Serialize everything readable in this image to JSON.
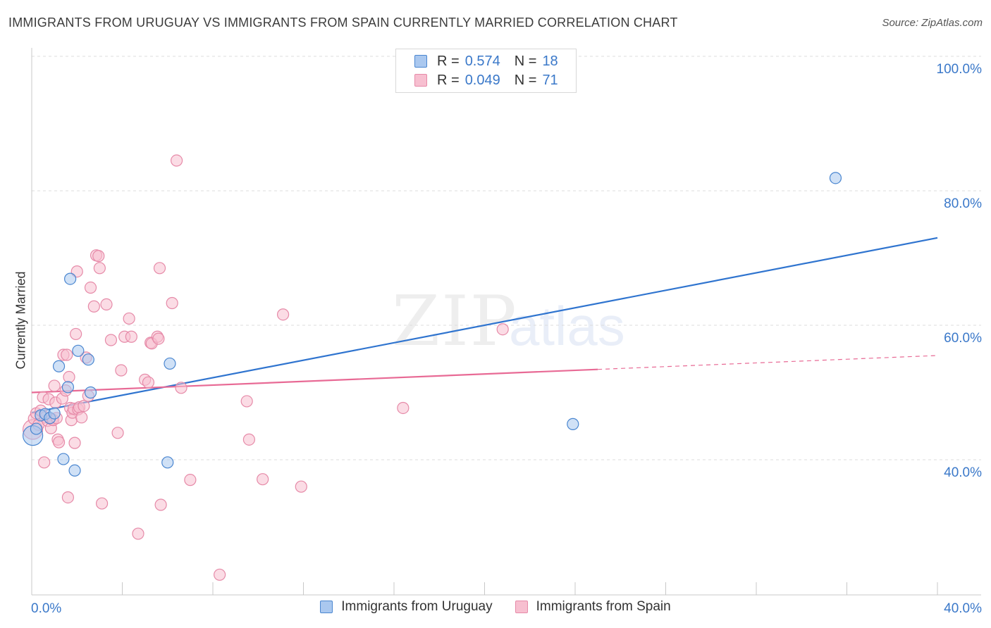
{
  "title": "IMMIGRANTS FROM URUGUAY VS IMMIGRANTS FROM SPAIN CURRENTLY MARRIED CORRELATION CHART",
  "source": "Source: ZipAtlas.com",
  "watermark": {
    "zip": "ZIP",
    "atlas": "atlas"
  },
  "legend": {
    "uruguay": {
      "r_label": "R =",
      "r_value": "0.574",
      "n_label": "N =",
      "n_value": "18"
    },
    "spain": {
      "r_label": "R =",
      "r_value": "0.049",
      "n_label": "N =",
      "n_value": "71"
    }
  },
  "colors": {
    "uruguay_fill": "#aac8ef",
    "uruguay_stroke": "#4a86d0",
    "uruguay_line": "#2f74cf",
    "spain_fill": "#f7bfd0",
    "spain_stroke": "#e68aa8",
    "spain_line": "#e86a95"
  },
  "chart_data": {
    "type": "scatter",
    "title": "IMMIGRANTS FROM URUGUAY VS IMMIGRANTS FROM SPAIN CURRENTLY MARRIED CORRELATION CHART",
    "xlabel": "",
    "ylabel": "Currently Married",
    "xlim": [
      0,
      40
    ],
    "ylim": [
      22,
      102
    ],
    "x_tick_labels": [
      "0.0%",
      "40.0%"
    ],
    "y_ticks": [
      40,
      60,
      80,
      100
    ],
    "y_tick_labels": [
      "40.0%",
      "60.0%",
      "80.0%",
      "100.0%"
    ],
    "grid": true,
    "series": [
      {
        "name": "Immigrants from Uruguay",
        "r": 0.574,
        "n": 18,
        "trend": {
          "x": [
            0,
            40
          ],
          "y": [
            47.0,
            73.0
          ]
        },
        "points": [
          {
            "x": 0.05,
            "y": 43.6,
            "big": true
          },
          {
            "x": 0.2,
            "y": 44.6
          },
          {
            "x": 0.4,
            "y": 46.6
          },
          {
            "x": 0.6,
            "y": 46.8
          },
          {
            "x": 0.8,
            "y": 46.2
          },
          {
            "x": 1.0,
            "y": 46.9
          },
          {
            "x": 1.2,
            "y": 53.9
          },
          {
            "x": 1.4,
            "y": 40.1
          },
          {
            "x": 1.6,
            "y": 50.8
          },
          {
            "x": 1.7,
            "y": 66.9
          },
          {
            "x": 1.9,
            "y": 38.4
          },
          {
            "x": 2.05,
            "y": 56.2
          },
          {
            "x": 2.5,
            "y": 54.9
          },
          {
            "x": 2.6,
            "y": 50.0
          },
          {
            "x": 6.0,
            "y": 39.6
          },
          {
            "x": 6.1,
            "y": 54.3
          },
          {
            "x": 23.9,
            "y": 45.3
          },
          {
            "x": 35.5,
            "y": 81.9
          }
        ]
      },
      {
        "name": "Immigrants from Spain",
        "r": 0.049,
        "n": 71,
        "trend": {
          "x": [
            0,
            40
          ],
          "y": [
            50.0,
            55.5
          ],
          "solid_until_x": 25.0
        },
        "points": [
          {
            "x": 0.05,
            "y": 44.5,
            "big": true
          },
          {
            "x": 0.1,
            "y": 46.1
          },
          {
            "x": 0.2,
            "y": 46.9
          },
          {
            "x": 0.3,
            "y": 45.2
          },
          {
            "x": 0.4,
            "y": 47.3
          },
          {
            "x": 0.5,
            "y": 49.3
          },
          {
            "x": 0.55,
            "y": 39.6
          },
          {
            "x": 0.6,
            "y": 46.3
          },
          {
            "x": 0.7,
            "y": 45.8
          },
          {
            "x": 0.75,
            "y": 49.0
          },
          {
            "x": 0.8,
            "y": 46.2
          },
          {
            "x": 0.85,
            "y": 44.7
          },
          {
            "x": 0.9,
            "y": 46.0
          },
          {
            "x": 0.95,
            "y": 45.9
          },
          {
            "x": 1.0,
            "y": 51.0
          },
          {
            "x": 1.05,
            "y": 48.5
          },
          {
            "x": 1.1,
            "y": 46.2
          },
          {
            "x": 1.15,
            "y": 43.0
          },
          {
            "x": 1.2,
            "y": 42.6
          },
          {
            "x": 1.35,
            "y": 49.1
          },
          {
            "x": 1.4,
            "y": 55.6
          },
          {
            "x": 1.5,
            "y": 50.3
          },
          {
            "x": 1.55,
            "y": 55.6
          },
          {
            "x": 1.6,
            "y": 34.4
          },
          {
            "x": 1.65,
            "y": 52.3
          },
          {
            "x": 1.7,
            "y": 47.7
          },
          {
            "x": 1.75,
            "y": 45.9
          },
          {
            "x": 1.8,
            "y": 47.0
          },
          {
            "x": 1.85,
            "y": 47.6
          },
          {
            "x": 1.9,
            "y": 42.5
          },
          {
            "x": 1.95,
            "y": 58.7
          },
          {
            "x": 2.0,
            "y": 68.0
          },
          {
            "x": 2.05,
            "y": 47.5
          },
          {
            "x": 2.1,
            "y": 47.8
          },
          {
            "x": 2.2,
            "y": 46.3
          },
          {
            "x": 2.3,
            "y": 48.0
          },
          {
            "x": 2.4,
            "y": 55.2
          },
          {
            "x": 2.5,
            "y": 49.5
          },
          {
            "x": 2.6,
            "y": 65.6
          },
          {
            "x": 2.75,
            "y": 62.8
          },
          {
            "x": 2.85,
            "y": 70.4
          },
          {
            "x": 2.95,
            "y": 70.3
          },
          {
            "x": 3.0,
            "y": 68.5
          },
          {
            "x": 3.1,
            "y": 33.5
          },
          {
            "x": 3.3,
            "y": 63.1
          },
          {
            "x": 3.5,
            "y": 57.8
          },
          {
            "x": 3.8,
            "y": 44.0
          },
          {
            "x": 3.95,
            "y": 53.3
          },
          {
            "x": 4.1,
            "y": 58.3
          },
          {
            "x": 4.3,
            "y": 61.0
          },
          {
            "x": 4.4,
            "y": 58.3
          },
          {
            "x": 4.7,
            "y": 29.0
          },
          {
            "x": 5.0,
            "y": 51.9
          },
          {
            "x": 5.15,
            "y": 51.5
          },
          {
            "x": 5.25,
            "y": 57.4
          },
          {
            "x": 5.3,
            "y": 57.3
          },
          {
            "x": 5.55,
            "y": 58.3
          },
          {
            "x": 5.6,
            "y": 58.0
          },
          {
            "x": 5.65,
            "y": 68.5
          },
          {
            "x": 5.7,
            "y": 33.3
          },
          {
            "x": 6.2,
            "y": 63.3
          },
          {
            "x": 6.4,
            "y": 84.5
          },
          {
            "x": 6.6,
            "y": 50.7
          },
          {
            "x": 7.0,
            "y": 37.0
          },
          {
            "x": 8.3,
            "y": 22.9
          },
          {
            "x": 9.5,
            "y": 48.7
          },
          {
            "x": 9.6,
            "y": 43.0
          },
          {
            "x": 10.2,
            "y": 37.1
          },
          {
            "x": 11.1,
            "y": 61.6
          },
          {
            "x": 11.9,
            "y": 36.0
          },
          {
            "x": 16.4,
            "y": 47.7
          },
          {
            "x": 20.8,
            "y": 59.4
          }
        ]
      }
    ]
  }
}
